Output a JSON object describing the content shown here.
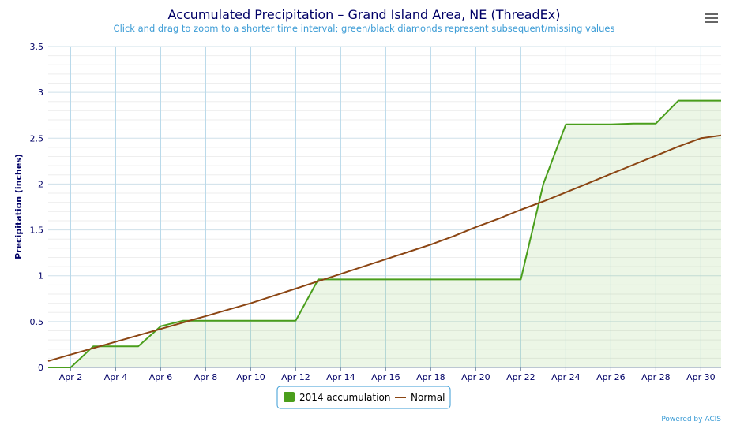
{
  "chart_data": {
    "type": "line",
    "title": "Accumulated Precipitation – Grand Island Area, NE (ThreadEx)",
    "subtitle": "Click and drag to zoom to a shorter time interval; green/black diamonds represent subsequent/missing values",
    "ylabel": "Precipitation (inches)",
    "xlabel": "",
    "ylim": [
      0,
      3.5
    ],
    "xlim": [
      1,
      30.9
    ],
    "yticks": [
      0,
      0.5,
      1,
      1.5,
      2,
      2.5,
      3,
      3.5
    ],
    "ytick_labels": [
      "0",
      "0.5",
      "1",
      "1.5",
      "2",
      "2.5",
      "3",
      "3.5"
    ],
    "xticks": [
      2,
      4,
      6,
      8,
      10,
      12,
      14,
      16,
      18,
      20,
      22,
      24,
      26,
      28,
      30
    ],
    "xtick_labels": [
      "Apr 2",
      "Apr 4",
      "Apr 6",
      "Apr 8",
      "Apr 10",
      "Apr 12",
      "Apr 14",
      "Apr 16",
      "Apr 18",
      "Apr 20",
      "Apr 22",
      "Apr 24",
      "Apr 26",
      "Apr 28",
      "Apr 30"
    ],
    "grid": true,
    "legend_position": "bottom",
    "series": [
      {
        "name": "2014 accumulation",
        "color": "#4a9e1c",
        "fill": "rgba(122, 190, 80, 0.14)",
        "area": true,
        "x": [
          1,
          2,
          3,
          4,
          5,
          6,
          7,
          8,
          9,
          10,
          11,
          12,
          13,
          14,
          15,
          16,
          17,
          18,
          19,
          20,
          21,
          22,
          23,
          24,
          25,
          26,
          27,
          28,
          29,
          30,
          30.9
        ],
        "y": [
          0,
          0,
          0.23,
          0.23,
          0.23,
          0.45,
          0.51,
          0.51,
          0.51,
          0.51,
          0.51,
          0.51,
          0.96,
          0.96,
          0.96,
          0.96,
          0.96,
          0.96,
          0.96,
          0.96,
          0.96,
          0.96,
          2.0,
          2.65,
          2.65,
          2.65,
          2.66,
          2.66,
          2.91,
          2.91,
          2.91
        ]
      },
      {
        "name": "Normal",
        "color": "#8b4513",
        "area": false,
        "x": [
          1,
          2,
          3,
          4,
          5,
          6,
          7,
          8,
          9,
          10,
          11,
          12,
          13,
          14,
          15,
          16,
          17,
          18,
          19,
          20,
          21,
          22,
          23,
          24,
          25,
          26,
          27,
          28,
          29,
          30,
          30.9
        ],
        "y": [
          0.07,
          0.14,
          0.21,
          0.28,
          0.35,
          0.42,
          0.49,
          0.56,
          0.63,
          0.7,
          0.78,
          0.86,
          0.94,
          1.02,
          1.1,
          1.18,
          1.26,
          1.34,
          1.43,
          1.53,
          1.62,
          1.72,
          1.81,
          1.91,
          2.01,
          2.11,
          2.21,
          2.31,
          2.41,
          2.5,
          2.53
        ]
      }
    ]
  },
  "menu_icon": "hamburger-menu-icon",
  "credit": "Powered by ACIS"
}
